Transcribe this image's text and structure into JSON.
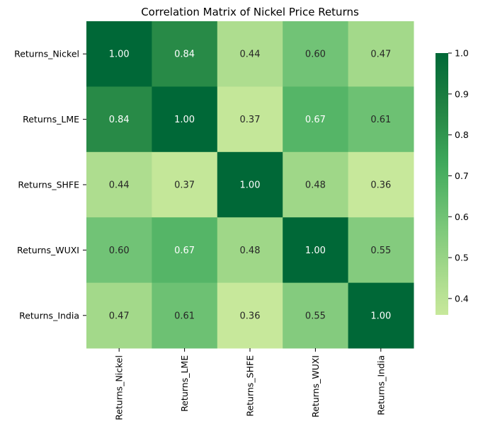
{
  "chart_data": {
    "type": "heatmap",
    "title": "Correlation Matrix of Nickel Price Returns",
    "xlabel": "",
    "ylabel": "",
    "row_labels": [
      "Returns_Nickel",
      "Returns_LME",
      "Returns_SHFE",
      "Returns_WUXI",
      "Returns_India"
    ],
    "col_labels": [
      "Returns_Nickel",
      "Returns_LME",
      "Returns_SHFE",
      "Returns_WUXI",
      "Returns_India"
    ],
    "values": [
      [
        1.0,
        0.84,
        0.44,
        0.6,
        0.47
      ],
      [
        0.84,
        1.0,
        0.37,
        0.67,
        0.61
      ],
      [
        0.44,
        0.37,
        1.0,
        0.48,
        0.36
      ],
      [
        0.6,
        0.67,
        0.48,
        1.0,
        0.55
      ],
      [
        0.47,
        0.61,
        0.36,
        0.55,
        1.0
      ]
    ],
    "cell_text": [
      [
        "1.00",
        "0.84",
        "0.44",
        "0.60",
        "0.47"
      ],
      [
        "0.84",
        "1.00",
        "0.37",
        "0.67",
        "0.61"
      ],
      [
        "0.44",
        "0.37",
        "1.00",
        "0.48",
        "0.36"
      ],
      [
        "0.60",
        "0.67",
        "0.48",
        "1.00",
        "0.55"
      ],
      [
        "0.47",
        "0.61",
        "0.36",
        "0.55",
        "1.00"
      ]
    ],
    "colormap": "YlGn",
    "vmin": 0.36,
    "vmax": 1.0,
    "colorbar": {
      "ticks": [
        0.4,
        0.5,
        0.6,
        0.7,
        0.8,
        0.9,
        1.0
      ],
      "tick_labels": [
        "0.4",
        "0.5",
        "0.6",
        "0.7",
        "0.8",
        "0.9",
        "1.0"
      ],
      "placement": "right"
    }
  }
}
